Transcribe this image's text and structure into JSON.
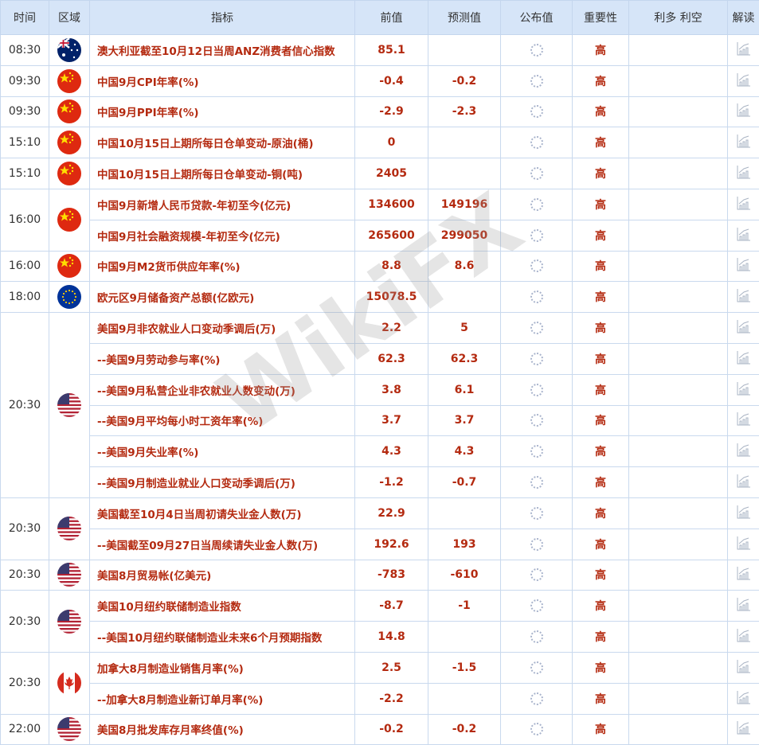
{
  "header": [
    "时间",
    "区域",
    "指标",
    "前值",
    "预测值",
    "公布值",
    "重要性",
    "利多 利空",
    "解读"
  ],
  "colors": {
    "text_red": "#b42a10",
    "header_bg": "#d6e5f8",
    "border": "#c9d9ee"
  },
  "watermark": "WikiFX",
  "groups": [
    {
      "time": "08:30",
      "flag": "australia",
      "rows": [
        {
          "name": "澳大利亚截至10月12日当周ANZ消费者信心指数",
          "prev": "85.1",
          "forecast": "",
          "importance": "高"
        }
      ]
    },
    {
      "time": "09:30",
      "flag": "china",
      "rows": [
        {
          "name": "中国9月CPI年率(%)",
          "prev": "-0.4",
          "forecast": "-0.2",
          "importance": "高"
        }
      ]
    },
    {
      "time": "09:30",
      "flag": "china",
      "rows": [
        {
          "name": "中国9月PPI年率(%)",
          "prev": "-2.9",
          "forecast": "-2.3",
          "importance": "高"
        }
      ]
    },
    {
      "time": "15:10",
      "flag": "china",
      "rows": [
        {
          "name": "中国10月15日上期所每日仓单变动-原油(桶)",
          "prev": "0",
          "forecast": "",
          "importance": "高"
        }
      ]
    },
    {
      "time": "15:10",
      "flag": "china",
      "rows": [
        {
          "name": "中国10月15日上期所每日仓单变动-铜(吨)",
          "prev": "2405",
          "forecast": "",
          "importance": "高"
        }
      ]
    },
    {
      "time": "16:00",
      "flag": "china",
      "rows": [
        {
          "name": "中国9月新增人民币贷款-年初至今(亿元)",
          "prev": "134600",
          "forecast": "149196",
          "importance": "高"
        },
        {
          "name": "中国9月社会融资规模-年初至今(亿元)",
          "prev": "265600",
          "forecast": "299050",
          "importance": "高"
        }
      ]
    },
    {
      "time": "16:00",
      "flag": "china",
      "rows": [
        {
          "name": "中国9月M2货币供应年率(%)",
          "prev": "8.8",
          "forecast": "8.6",
          "importance": "高"
        }
      ]
    },
    {
      "time": "18:00",
      "flag": "eu",
      "rows": [
        {
          "name": "欧元区9月储备资产总额(亿欧元)",
          "prev": "15078.5",
          "forecast": "",
          "importance": "高"
        }
      ]
    },
    {
      "time": "20:30",
      "flag": "usa",
      "rows": [
        {
          "name": "美国9月非农就业人口变动季调后(万)",
          "prev": "2.2",
          "forecast": "5",
          "importance": "高"
        },
        {
          "name": "--美国9月劳动参与率(%)",
          "prev": "62.3",
          "forecast": "62.3",
          "importance": "高"
        },
        {
          "name": "--美国9月私营企业非农就业人数变动(万)",
          "prev": "3.8",
          "forecast": "6.1",
          "importance": "高"
        },
        {
          "name": "--美国9月平均每小时工资年率(%)",
          "prev": "3.7",
          "forecast": "3.7",
          "importance": "高"
        },
        {
          "name": "--美国9月失业率(%)",
          "prev": "4.3",
          "forecast": "4.3",
          "importance": "高"
        },
        {
          "name": "--美国9月制造业就业人口变动季调后(万)",
          "prev": "-1.2",
          "forecast": "-0.7",
          "importance": "高"
        }
      ]
    },
    {
      "time": "20:30",
      "flag": "usa",
      "rows": [
        {
          "name": "美国截至10月4日当周初请失业金人数(万)",
          "prev": "22.9",
          "forecast": "",
          "importance": "高"
        },
        {
          "name": "--美国截至09月27日当周续请失业金人数(万)",
          "prev": "192.6",
          "forecast": "193",
          "importance": "高"
        }
      ]
    },
    {
      "time": "20:30",
      "flag": "usa",
      "rows": [
        {
          "name": "美国8月贸易帐(亿美元)",
          "prev": "-783",
          "forecast": "-610",
          "importance": "高"
        }
      ]
    },
    {
      "time": "20:30",
      "flag": "usa",
      "rows": [
        {
          "name": "美国10月纽约联储制造业指数",
          "prev": "-8.7",
          "forecast": "-1",
          "importance": "高"
        },
        {
          "name": "--美国10月纽约联储制造业未来6个月预期指数",
          "prev": "14.8",
          "forecast": "",
          "importance": "高"
        }
      ]
    },
    {
      "time": "20:30",
      "flag": "canada",
      "rows": [
        {
          "name": "加拿大8月制造业销售月率(%)",
          "prev": "2.5",
          "forecast": "-1.5",
          "importance": "高"
        },
        {
          "name": "--加拿大8月制造业新订单月率(%)",
          "prev": "-2.2",
          "forecast": "",
          "importance": "高"
        }
      ]
    },
    {
      "time": "22:00",
      "flag": "usa",
      "rows": [
        {
          "name": "美国8月批发库存月率终值(%)",
          "prev": "-0.2",
          "forecast": "-0.2",
          "importance": "高"
        }
      ]
    }
  ]
}
